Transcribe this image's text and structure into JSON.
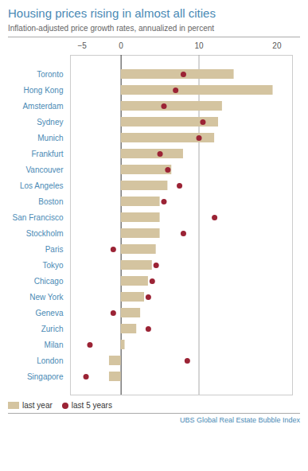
{
  "chart_data": {
    "type": "bar",
    "orientation": "horizontal",
    "title": "Housing prices rising in almost all cities",
    "subtitle": "Inflation-adjusted price growth rates, annualized in percent",
    "source": "UBS Global Real Estate Bubble Index",
    "categories": [
      "Toronto",
      "Hong Kong",
      "Amsterdam",
      "Sydney",
      "Munich",
      "Frankfurt",
      "Vancouver",
      "Los Angeles",
      "Boston",
      "San Francisco",
      "Stockholm",
      "Paris",
      "Tokyo",
      "Chicago",
      "New York",
      "Geneva",
      "Zurich",
      "Milan",
      "London",
      "Singapore"
    ],
    "series": [
      {
        "name": "last year",
        "type": "bar",
        "color": "#d4c4a0",
        "values": [
          14.5,
          19.5,
          13.0,
          12.5,
          12.0,
          8.0,
          6.5,
          6.0,
          5.0,
          5.0,
          5.0,
          4.5,
          4.0,
          3.5,
          3.0,
          2.5,
          2.0,
          0.5,
          -1.5,
          -1.5
        ]
      },
      {
        "name": "last 5 years",
        "type": "scatter",
        "marker": "circle",
        "color": "#9b2335",
        "values": [
          8.0,
          7.0,
          5.5,
          10.5,
          10.0,
          5.0,
          6.0,
          7.5,
          5.5,
          12.0,
          8.0,
          -1.0,
          4.5,
          4.0,
          3.5,
          -1.0,
          3.5,
          -4.0,
          8.5,
          -4.5
        ]
      }
    ],
    "xlim": [
      -6.5,
      22
    ],
    "xticks": [
      {
        "value": -5,
        "label": "−5"
      },
      0,
      10,
      20
    ],
    "vlines": [
      0,
      10
    ],
    "grid": false,
    "legend": "lower left"
  }
}
